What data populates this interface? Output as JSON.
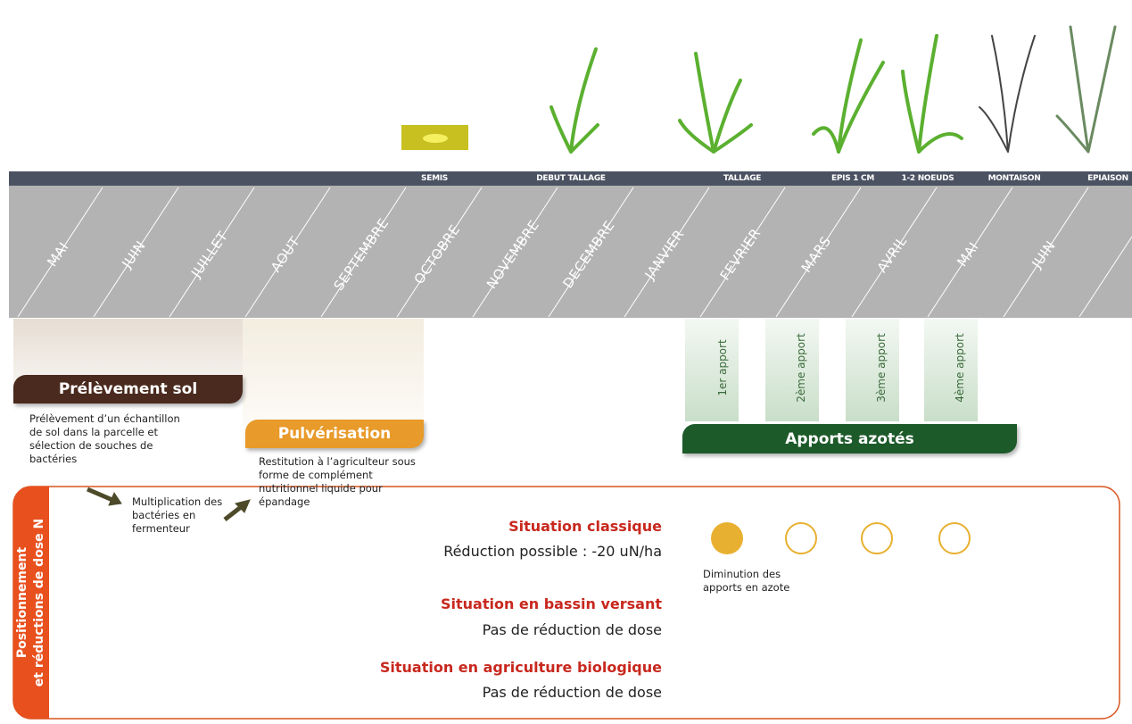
{
  "stages": [
    "SEMIS",
    "DEBUT TALLAGE",
    "TALLAGE",
    "EPIS 1 CM",
    "1-2 NOEUDS",
    "MONTAISON",
    "EPIAISON"
  ],
  "months": [
    "MAI",
    "JUIN",
    "JUILLET",
    "AOUT",
    "SEPTEMBRE",
    "OCTOBRE",
    "NOVEMBRE",
    "DECEMBRE",
    "JANVIER",
    "FEVRIER",
    "MARS",
    "AVRIL",
    "MAI",
    "JUIN"
  ],
  "sampling": {
    "title": "Prélèvement sol",
    "description": "Prélèvement d’un échantillon de sol dans la parcelle et sélection de souches de bactéries"
  },
  "multiplication": "Multiplication des bactéries en fermenteur",
  "spraying": {
    "title": "Pulvérisation",
    "description": "Restitution à l’agriculteur sous forme de complément nutritionnel liquide pour épandage"
  },
  "nitrogen_inputs": {
    "title": "Apports azotés",
    "applications": [
      "1er apport",
      "2ème apport",
      "3ème apport",
      "4ème apport"
    ]
  },
  "dose_panel": {
    "title": [
      "Positionnement",
      "et réductions de dose N"
    ],
    "situations": [
      {
        "name": "Situation classique",
        "detail": "Réduction possible : -20 uN/ha"
      },
      {
        "name": "Situation en bassin versant",
        "detail": "Pas de réduction de dose"
      },
      {
        "name": "Situation en agriculture biologique",
        "detail": "Pas de réduction de dose"
      }
    ],
    "legend": "Diminution des apports en azote"
  }
}
